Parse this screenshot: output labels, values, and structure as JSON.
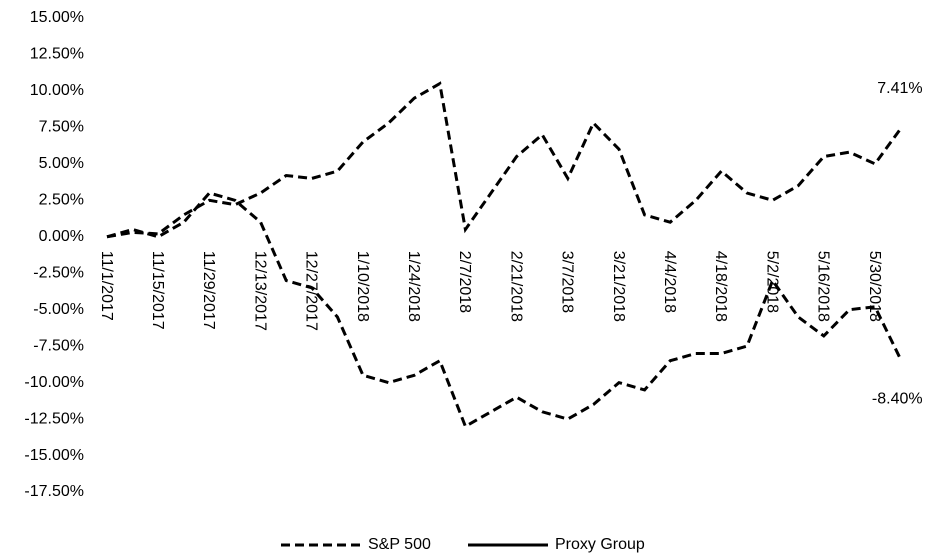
{
  "chart_data": {
    "type": "line",
    "categories": [
      "11/1/2017",
      null,
      "11/15/2017",
      null,
      "11/29/2017",
      null,
      "12/13/2017",
      null,
      "12/27/2017",
      null,
      "1/10/2018",
      null,
      "1/24/2018",
      null,
      "2/7/2018",
      null,
      "2/21/2018",
      null,
      "3/7/2018",
      null,
      "3/21/2018",
      null,
      "4/4/2018",
      null,
      "4/18/2018",
      null,
      "5/2/2018",
      null,
      "5/16/2018",
      null,
      "5/30/2018",
      null
    ],
    "series": [
      {
        "name": "S&P 500",
        "color": "#000000",
        "line_style": "dashed",
        "legend_style": "dashed",
        "values": [
          0,
          0.3,
          0.2,
          1.5,
          2.5,
          2.2,
          3,
          4.2,
          4.0,
          4.5,
          6.5,
          7.8,
          9.5,
          10.5,
          0.5,
          3,
          5.5,
          7,
          4,
          7.8,
          6,
          1.5,
          1.0,
          2.5,
          4.5,
          3,
          2.5,
          3.5,
          5.5,
          5.8,
          5.0,
          7.41
        ],
        "value_labels": [
          null,
          null,
          null,
          null,
          null,
          null,
          null,
          null,
          null,
          null,
          null,
          null,
          null,
          null,
          null,
          null,
          null,
          null,
          null,
          null,
          null,
          null,
          null,
          null,
          null,
          null,
          null,
          null,
          null,
          null,
          null,
          "7.41%"
        ]
      },
      {
        "name": "Proxy Group",
        "color": "#000000",
        "line_style": "dashed",
        "legend_style": "solid",
        "values": [
          0,
          0.5,
          0,
          1,
          3,
          2.5,
          1,
          -3,
          -3.5,
          -5.5,
          -9.5,
          -10,
          -9.5,
          -8.5,
          -13,
          -12,
          -11,
          -12,
          -12.5,
          -11.5,
          -10,
          -10.5,
          -8.5,
          -8,
          -8,
          -7.5,
          -3,
          -5.5,
          -6.8,
          -5,
          -4.8,
          -8.4
        ],
        "value_labels": [
          null,
          null,
          null,
          null,
          null,
          null,
          null,
          null,
          null,
          null,
          null,
          null,
          null,
          null,
          null,
          null,
          null,
          null,
          null,
          null,
          null,
          null,
          null,
          null,
          null,
          null,
          null,
          null,
          null,
          null,
          null,
          "-8.40%"
        ]
      }
    ],
    "ylim": [
      -17.5,
      15
    ],
    "yticks": [
      {
        "value": 15,
        "label": "15.00%"
      },
      {
        "value": 12.5,
        "label": "12.50%"
      },
      {
        "value": 10,
        "label": "10.00%"
      },
      {
        "value": 7.5,
        "label": "7.50%"
      },
      {
        "value": 5,
        "label": "5.00%"
      },
      {
        "value": 2.5,
        "label": "2.50%"
      },
      {
        "value": 0,
        "label": "0.00%"
      },
      {
        "value": -2.5,
        "label": "-2.50%"
      },
      {
        "value": -5,
        "label": "-5.00%"
      },
      {
        "value": -7.5,
        "label": "-7.50%"
      },
      {
        "value": -10,
        "label": "-10.00%"
      },
      {
        "value": -12.5,
        "label": "-12.50%"
      },
      {
        "value": -15,
        "label": "-15.00%"
      },
      {
        "value": -17.5,
        "label": "-17.50%"
      }
    ],
    "grid": false,
    "legend": "bottom"
  }
}
